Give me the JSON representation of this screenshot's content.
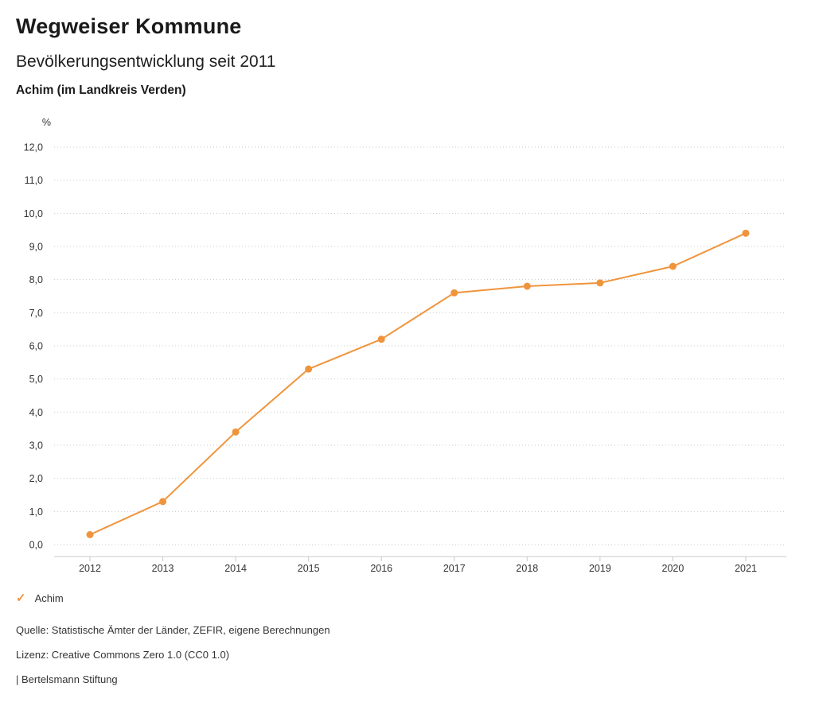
{
  "header": {
    "title": "Wegweiser Kommune",
    "subtitle": "Bevölkerungsentwicklung seit 2011",
    "region": "Achim (im Landkreis Verden)"
  },
  "chart_data": {
    "type": "line",
    "title": "Bevölkerungsentwicklung seit 2011",
    "unit_label": "%",
    "categories": [
      "2012",
      "2013",
      "2014",
      "2015",
      "2016",
      "2017",
      "2018",
      "2019",
      "2020",
      "2021"
    ],
    "series": [
      {
        "name": "Achim",
        "values": [
          0.3,
          1.3,
          3.4,
          5.3,
          6.2,
          7.6,
          7.8,
          7.9,
          8.4,
          9.4
        ]
      }
    ],
    "ylim": [
      0,
      12
    ],
    "ytick_step": 1,
    "grid": true,
    "line_color": "#f0943c",
    "legend_position": "bottom"
  },
  "legend": {
    "items": [
      {
        "label": "Achim",
        "color": "#f0943c"
      }
    ]
  },
  "footer": {
    "source": "Quelle: Statistische Ämter der Länder, ZEFIR, eigene Berechnungen",
    "license": "Lizenz: Creative Commons Zero 1.0 (CC0 1.0)",
    "attribution": "| Bertelsmann Stiftung"
  }
}
